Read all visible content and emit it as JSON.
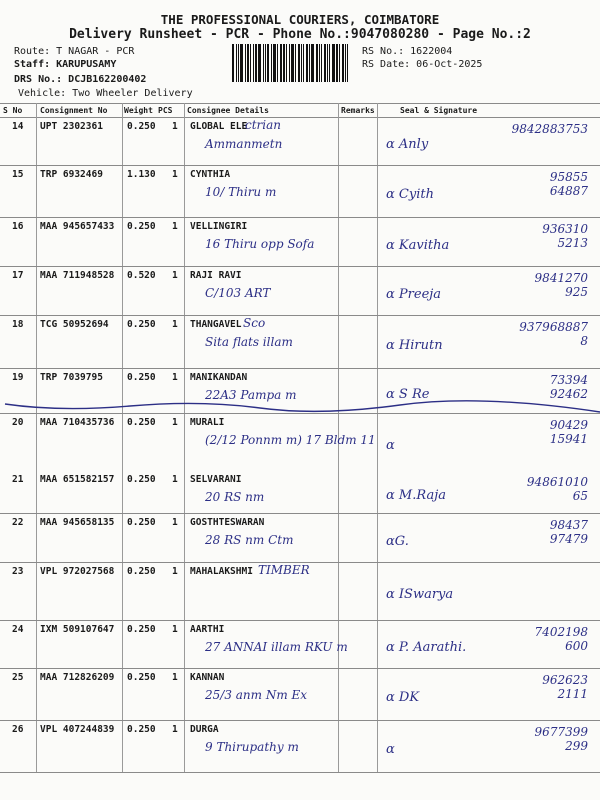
{
  "header": {
    "company": "THE PROFESSIONAL COURIERS, COIMBATORE",
    "subtitle": "Delivery Runsheet - PCR - Phone No.:9047080280 - Page No.:2",
    "route": "Route: T NAGAR - PCR",
    "staff": "Staff: KARUPUSAMY",
    "drs_no": "DRS No.: DCJB162200402",
    "vehicle": "Vehicle: Two Wheeler Delivery",
    "rs_no": "RS No.: 1622004",
    "rs_date": "RS Date: 06-Oct-2025"
  },
  "columns": {
    "sno": "S No",
    "consignment": "Consignment No",
    "weight": "Weight",
    "pcs": "PCS",
    "consignee": "Consignee Details",
    "remarks": "Remarks",
    "seal": "Seal & Signature"
  },
  "ink_color": "#2c2f86",
  "rows": [
    {
      "sno": "14",
      "consignment": "UPT 2302361",
      "weight": "0.250",
      "pcs": "1",
      "consignee": "GLOBAL ELE",
      "note1": "ctrian",
      "note2": "Ammanmetn",
      "signature": "α Anly",
      "phone1": "9842883753",
      "phone2": ""
    },
    {
      "sno": "15",
      "consignment": "TRP 6932469",
      "weight": "1.130",
      "pcs": "1",
      "consignee": "CYNTHIA",
      "note1": "",
      "note2": "10/ Thiru m",
      "signature": "α Cyith",
      "phone1": "95855",
      "phone2": "64887"
    },
    {
      "sno": "16",
      "consignment": "MAA 945657433",
      "weight": "0.250",
      "pcs": "1",
      "consignee": "VELLINGIRI",
      "note1": "",
      "note2": "16 Thiru opp Sofa",
      "signature": "α Kavitha",
      "phone1": "936310",
      "phone2": "5213"
    },
    {
      "sno": "17",
      "consignment": "MAA 711948528",
      "weight": "0.520",
      "pcs": "1",
      "consignee": "RAJI RAVI",
      "note1": "",
      "note2": "C/103 ART",
      "signature": "α Preeja",
      "phone1": "9841270",
      "phone2": "925"
    },
    {
      "sno": "18",
      "consignment": "TCG 50952694",
      "weight": "0.250",
      "pcs": "1",
      "consignee": "THANGAVEL",
      "note1": "Sco",
      "note2": "Sita flats illam",
      "signature": "α Hirutn",
      "phone1": "937968887",
      "phone2": "8"
    },
    {
      "sno": "19",
      "consignment": "TRP 7039795",
      "weight": "0.250",
      "pcs": "1",
      "consignee": "MANIKANDAN",
      "note1": "",
      "note2": "22A3 Pampa m",
      "signature": "α S Re",
      "phone1": "73394",
      "phone2": "92462"
    },
    {
      "sno": "20",
      "consignment": "MAA 710435736",
      "weight": "0.250",
      "pcs": "1",
      "consignee": "MURALI",
      "note1": "",
      "note2": "(2/12 Ponnm m) 17 Bldm 11",
      "signature": "α",
      "phone1": "90429",
      "phone2": "15941"
    },
    {
      "sno": "21",
      "consignment": "MAA 651582157",
      "weight": "0.250",
      "pcs": "1",
      "consignee": "SELVARANI",
      "note1": "",
      "note2": "20 RS nm",
      "signature": "α M.Raja",
      "phone1": "94861010",
      "phone2": "65"
    },
    {
      "sno": "22",
      "consignment": "MAA 945658135",
      "weight": "0.250",
      "pcs": "1",
      "consignee": "GOSTHTESWARAN",
      "note1": "",
      "note2": "28 RS nm Ctm",
      "signature": "αG.",
      "phone1": "98437",
      "phone2": "97479"
    },
    {
      "sno": "23",
      "consignment": "VPL 972027568",
      "weight": "0.250",
      "pcs": "1",
      "consignee": "MAHALAKSHMI",
      "note1": "TIMBER",
      "note2": "",
      "signature": "α ISwarya",
      "phone1": "",
      "phone2": ""
    },
    {
      "sno": "24",
      "consignment": "IXM 509107647",
      "weight": "0.250",
      "pcs": "1",
      "consignee": "AARTHI",
      "note1": "",
      "note2": "27 ANNAI illam RKU m",
      "signature": "α P. Aarathi.",
      "phone1": "7402198",
      "phone2": "600"
    },
    {
      "sno": "25",
      "consignment": "MAA 712826209",
      "weight": "0.250",
      "pcs": "1",
      "consignee": "KANNAN",
      "note1": "",
      "note2": "25/3 anm Nm Ex",
      "signature": "α DK",
      "phone1": "962623",
      "phone2": "2111"
    },
    {
      "sno": "26",
      "consignment": "VPL 407244839",
      "weight": "0.250",
      "pcs": "1",
      "consignee": "DURGA",
      "note1": "",
      "note2": "9 Thirupathy m",
      "signature": "α",
      "phone1": "9677399",
      "phone2": "299"
    }
  ]
}
